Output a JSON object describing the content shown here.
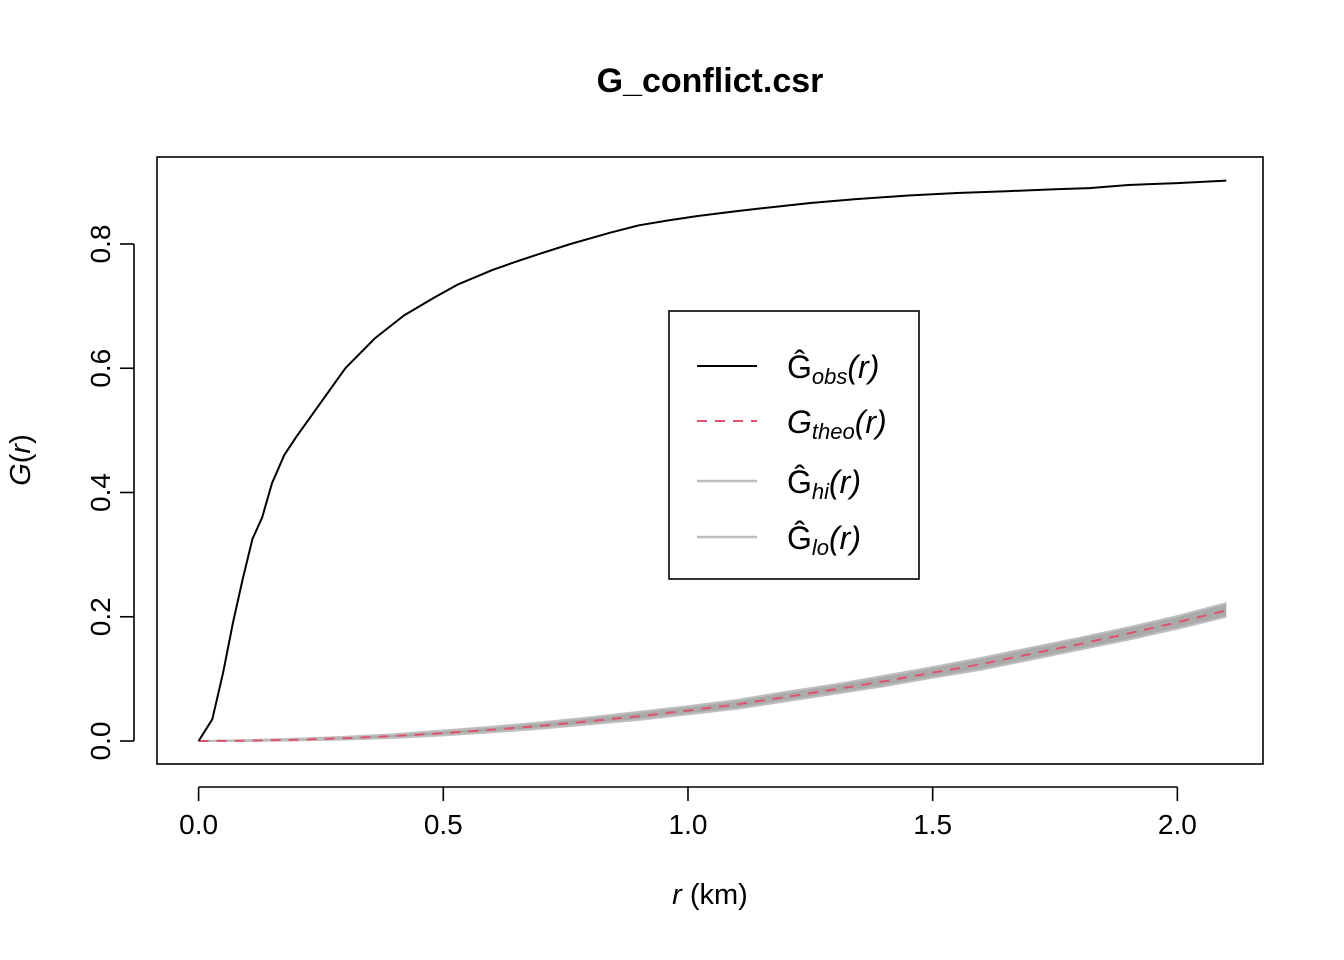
{
  "chart_data": {
    "type": "line",
    "title": "G_conflict.csr",
    "xlabel": {
      "var": "r",
      "unit": " (km)"
    },
    "ylabel": {
      "func": "G",
      "paren_open": "(",
      "var": "r",
      "paren_close": ")"
    },
    "xlim": [
      -0.085,
      2.175
    ],
    "ylim": [
      -0.037,
      0.94
    ],
    "x_ticks": [
      0,
      0.5,
      1.0,
      1.5,
      2.0
    ],
    "x_tick_labels": [
      "0.0",
      "0.5",
      "1.0",
      "1.5",
      "2.0"
    ],
    "y_ticks": [
      0,
      0.2,
      0.4,
      0.6,
      0.8
    ],
    "y_tick_labels": [
      "0.0",
      "0.2",
      "0.4",
      "0.6",
      "0.8"
    ],
    "legend": {
      "position": "center",
      "entries": [
        {
          "base": "Ĝ",
          "sub": "obs",
          "suffix": "(r)",
          "color": "#000000",
          "style": "solid"
        },
        {
          "base": "G",
          "sub": "theo",
          "suffix": "(r)",
          "color": "#DF536B",
          "style": "dashed"
        },
        {
          "base": "Ĝ",
          "sub": "hi",
          "suffix": "(r)",
          "color": "#bebebe",
          "style": "solid"
        },
        {
          "base": "Ĝ",
          "sub": "lo",
          "suffix": "(r)",
          "color": "#bebebe",
          "style": "solid"
        }
      ]
    },
    "envelope_color": "#aaaaaa",
    "series": [
      {
        "name": "obs",
        "color": "#000000",
        "x": [
          0,
          0.028,
          0.05,
          0.07,
          0.09,
          0.11,
          0.13,
          0.15,
          0.175,
          0.2,
          0.25,
          0.3,
          0.36,
          0.42,
          0.48,
          0.53,
          0.6,
          0.65,
          0.7,
          0.76,
          0.84,
          0.9,
          0.96,
          1.02,
          1.1,
          1.18,
          1.25,
          1.34,
          1.45,
          1.55,
          1.65,
          1.75,
          1.82,
          1.9,
          2.0,
          2.1
        ],
        "y": [
          0,
          0.035,
          0.11,
          0.19,
          0.26,
          0.325,
          0.36,
          0.415,
          0.46,
          0.49,
          0.545,
          0.6,
          0.648,
          0.685,
          0.713,
          0.735,
          0.758,
          0.772,
          0.785,
          0.8,
          0.818,
          0.83,
          0.838,
          0.845,
          0.853,
          0.86,
          0.866,
          0.872,
          0.878,
          0.882,
          0.885,
          0.888,
          0.89,
          0.895,
          0.898,
          0.902
        ]
      },
      {
        "name": "theo",
        "color": "#DF536B",
        "x": [
          0,
          0.1,
          0.2,
          0.3,
          0.4,
          0.5,
          0.6,
          0.7,
          0.8,
          0.9,
          1.0,
          1.1,
          1.2,
          1.3,
          1.4,
          1.5,
          1.6,
          1.7,
          1.8,
          1.9,
          2.0,
          2.1
        ],
        "y": [
          0,
          0.0005,
          0.002,
          0.0045,
          0.008,
          0.0125,
          0.018,
          0.0245,
          0.032,
          0.04,
          0.049,
          0.059,
          0.071,
          0.083,
          0.096,
          0.11,
          0.124,
          0.14,
          0.156,
          0.173,
          0.191,
          0.21
        ]
      },
      {
        "name": "hi",
        "color": "#bebebe",
        "x": [
          0,
          0.1,
          0.2,
          0.3,
          0.4,
          0.5,
          0.6,
          0.7,
          0.8,
          0.9,
          1.0,
          1.1,
          1.2,
          1.3,
          1.4,
          1.5,
          1.6,
          1.7,
          1.8,
          1.9,
          2.0,
          2.1
        ],
        "y": [
          0,
          0.0015,
          0.0035,
          0.007,
          0.011,
          0.017,
          0.023,
          0.03,
          0.038,
          0.047,
          0.056,
          0.066,
          0.079,
          0.091,
          0.105,
          0.119,
          0.134,
          0.15,
          0.166,
          0.183,
          0.201,
          0.222
        ]
      },
      {
        "name": "lo",
        "color": "#bebebe",
        "x": [
          0,
          0.1,
          0.2,
          0.3,
          0.4,
          0.5,
          0.6,
          0.7,
          0.8,
          0.9,
          1.0,
          1.1,
          1.2,
          1.3,
          1.4,
          1.5,
          1.6,
          1.7,
          1.8,
          1.9,
          2.0,
          2.1
        ],
        "y": [
          0,
          0,
          0.001,
          0.0025,
          0.005,
          0.009,
          0.014,
          0.02,
          0.027,
          0.034,
          0.043,
          0.052,
          0.064,
          0.076,
          0.088,
          0.102,
          0.115,
          0.131,
          0.147,
          0.163,
          0.181,
          0.2
        ]
      }
    ]
  }
}
